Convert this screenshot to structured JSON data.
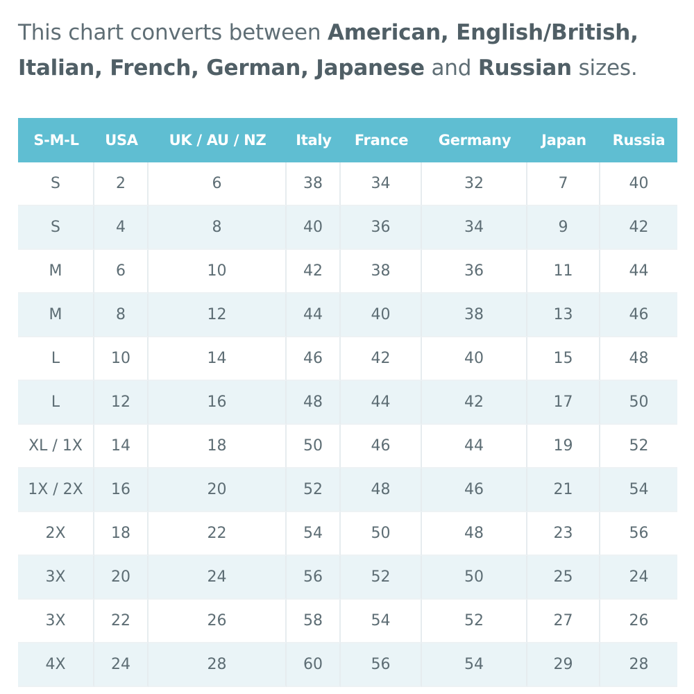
{
  "intro": {
    "t1": "This chart converts between ",
    "b1": "American, English/British,",
    "t2": " ",
    "b2": "Italian, French, German, Japanese",
    "t3": " and ",
    "b3": "Russian",
    "t4": " sizes."
  },
  "table": {
    "headers": [
      "S-M-L",
      "USA",
      "UK / AU / NZ",
      "Italy",
      "France",
      "Germany",
      "Japan",
      "Russia"
    ],
    "rows": [
      [
        "S",
        "2",
        "6",
        "38",
        "34",
        "32",
        "7",
        "40"
      ],
      [
        "S",
        "4",
        "8",
        "40",
        "36",
        "34",
        "9",
        "42"
      ],
      [
        "M",
        "6",
        "10",
        "42",
        "38",
        "36",
        "11",
        "44"
      ],
      [
        "M",
        "8",
        "12",
        "44",
        "40",
        "38",
        "13",
        "46"
      ],
      [
        "L",
        "10",
        "14",
        "46",
        "42",
        "40",
        "15",
        "48"
      ],
      [
        "L",
        "12",
        "16",
        "48",
        "44",
        "42",
        "17",
        "50"
      ],
      [
        "XL / 1X",
        "14",
        "18",
        "50",
        "46",
        "44",
        "19",
        "52"
      ],
      [
        "1X / 2X",
        "16",
        "20",
        "52",
        "48",
        "46",
        "21",
        "54"
      ],
      [
        "2X",
        "18",
        "22",
        "54",
        "50",
        "48",
        "23",
        "56"
      ],
      [
        "3X",
        "20",
        "24",
        "56",
        "52",
        "50",
        "25",
        "24"
      ],
      [
        "3X",
        "22",
        "26",
        "58",
        "54",
        "52",
        "27",
        "26"
      ],
      [
        "4X",
        "24",
        "28",
        "60",
        "56",
        "54",
        "29",
        "28"
      ]
    ]
  }
}
